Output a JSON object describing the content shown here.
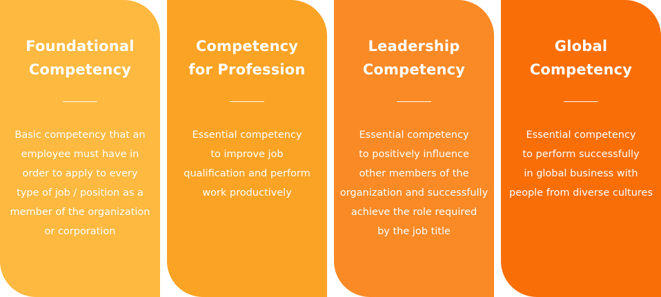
{
  "cards": [
    {
      "title_lines": [
        "Foundational",
        "Competency"
      ],
      "description_lines": [
        "Basic competency that an",
        "employee must have in",
        "order to apply to every",
        "type of job / position as a",
        "member of the organization",
        "or corporation"
      ],
      "color": "#FDB940"
    },
    {
      "title_lines": [
        "Competency",
        "for Profession"
      ],
      "description_lines": [
        "Essential competency",
        "to improve job",
        "qualification and perform",
        "work productively"
      ],
      "color": "#FBA324"
    },
    {
      "title_lines": [
        "Leadership",
        "Competency"
      ],
      "description_lines": [
        "Essential competency",
        "to positively influence",
        "other members of the",
        "organization and successfully",
        "achieve the role required",
        "by the job title"
      ],
      "color": "#FA8A26"
    },
    {
      "title_lines": [
        "Global",
        "Competency"
      ],
      "description_lines": [
        "Essential competency",
        "to perform successfully",
        "in global business with",
        "people from diverse cultures"
      ],
      "color": "#FA6E08"
    }
  ]
}
